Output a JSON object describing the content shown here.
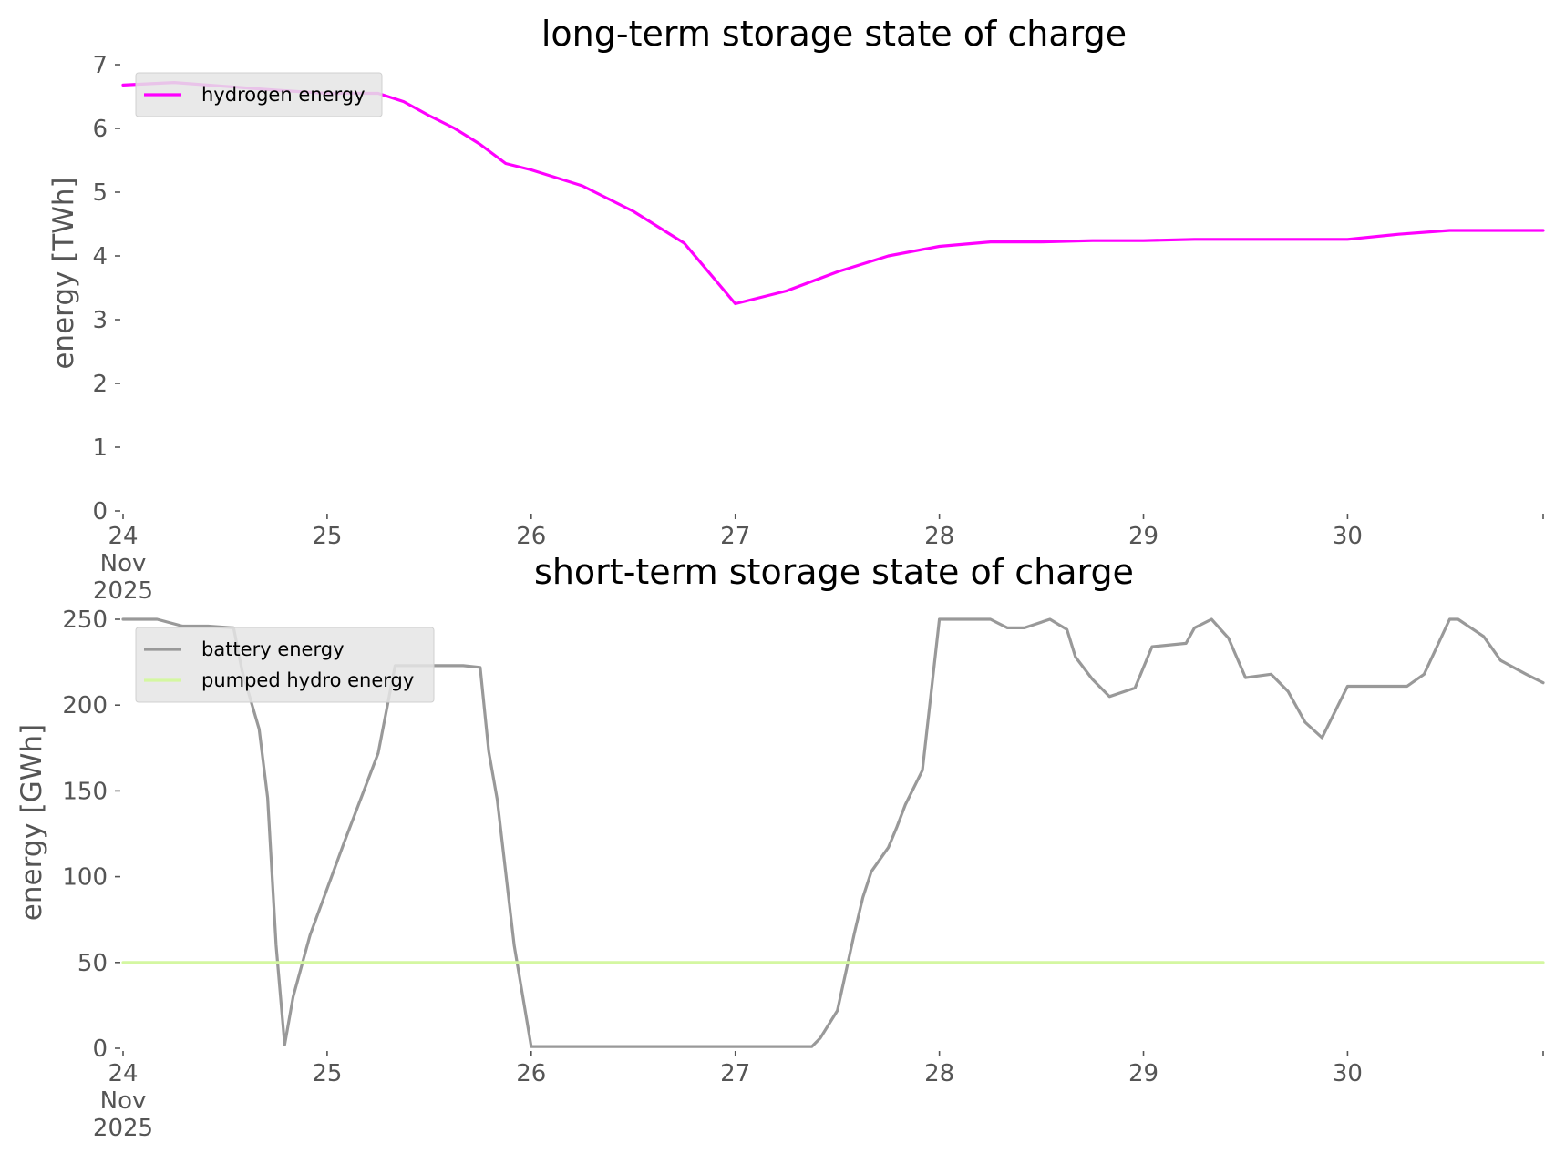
{
  "chart_data": [
    {
      "type": "line",
      "title": "long-term storage state of charge",
      "xlabel": "",
      "ylabel": "energy [TWh]",
      "xlim": [
        "2025-11-24",
        "2025-11-30 23:00"
      ],
      "ylim": [
        0,
        7
      ],
      "x_ticks": [
        "24\nNov\n2025",
        "25",
        "26",
        "27",
        "28",
        "29",
        "30"
      ],
      "y_ticks": [
        "0",
        "1",
        "2",
        "3",
        "4",
        "5",
        "6",
        "7"
      ],
      "grid": false,
      "legend": "top-left",
      "colors": {
        "hydrogen energy": "#ff00ff"
      },
      "series": [
        {
          "name": "hydrogen energy",
          "x": [
            "2025-11-24 00:00",
            "2025-11-24 06:00",
            "2025-11-24 12:00",
            "2025-11-24 18:00",
            "2025-11-25 00:00",
            "2025-11-25 06:00",
            "2025-11-25 09:00",
            "2025-11-25 12:00",
            "2025-11-25 15:00",
            "2025-11-25 18:00",
            "2025-11-25 21:00",
            "2025-11-26 00:00",
            "2025-11-26 06:00",
            "2025-11-26 12:00",
            "2025-11-26 18:00",
            "2025-11-27 00:00",
            "2025-11-27 06:00",
            "2025-11-27 12:00",
            "2025-11-27 18:00",
            "2025-11-28 00:00",
            "2025-11-28 06:00",
            "2025-11-28 12:00",
            "2025-11-28 18:00",
            "2025-11-29 00:00",
            "2025-11-29 06:00",
            "2025-11-29 12:00",
            "2025-11-29 18:00",
            "2025-11-30 00:00",
            "2025-11-30 06:00",
            "2025-11-30 12:00",
            "2025-11-30 18:00",
            "2025-11-30 23:00"
          ],
          "y": [
            6.68,
            6.72,
            6.66,
            6.6,
            6.55,
            6.55,
            6.42,
            6.2,
            6.0,
            5.75,
            5.45,
            5.35,
            5.1,
            4.7,
            4.2,
            3.25,
            3.45,
            3.75,
            4.0,
            4.15,
            4.22,
            4.22,
            4.24,
            4.24,
            4.26,
            4.26,
            4.26,
            4.26,
            4.34,
            4.4,
            4.4,
            4.4
          ]
        }
      ]
    },
    {
      "type": "line",
      "title": "short-term storage state of charge",
      "xlabel": "",
      "ylabel": "energy [GWh]",
      "xlim": [
        "2025-11-24",
        "2025-11-30 23:00"
      ],
      "ylim": [
        0,
        250
      ],
      "x_ticks": [
        "24\nNov\n2025",
        "25",
        "26",
        "27",
        "28",
        "29",
        "30"
      ],
      "y_ticks": [
        "0",
        "50",
        "100",
        "150",
        "200",
        "250"
      ],
      "grid": false,
      "legend": "top-left",
      "colors": {
        "battery energy": "#999999",
        "pumped hydro energy": "#d4f7a1"
      },
      "series": [
        {
          "name": "battery energy",
          "x": [
            "2025-11-24 00:00",
            "2025-11-24 04:00",
            "2025-11-24 07:00",
            "2025-11-24 10:00",
            "2025-11-24 13:00",
            "2025-11-24 14:00",
            "2025-11-24 16:00",
            "2025-11-24 17:00",
            "2025-11-24 18:00",
            "2025-11-24 19:00",
            "2025-11-24 20:00",
            "2025-11-24 22:00",
            "2025-11-25 02:00",
            "2025-11-25 06:00",
            "2025-11-25 08:00",
            "2025-11-25 16:00",
            "2025-11-25 18:00",
            "2025-11-25 19:00",
            "2025-11-25 20:00",
            "2025-11-25 22:00",
            "2025-11-26 00:00",
            "2025-11-27 06:00",
            "2025-11-27 09:00",
            "2025-11-27 10:00",
            "2025-11-27 12:00",
            "2025-11-27 14:00",
            "2025-11-27 15:00",
            "2025-11-27 16:00",
            "2025-11-27 18:00",
            "2025-11-27 19:00",
            "2025-11-27 20:00",
            "2025-11-27 22:00",
            "2025-11-28 00:00",
            "2025-11-28 06:00",
            "2025-11-28 08:00",
            "2025-11-28 10:00",
            "2025-11-28 13:00",
            "2025-11-28 15:00",
            "2025-11-28 16:00",
            "2025-11-28 18:00",
            "2025-11-28 20:00",
            "2025-11-28 23:00",
            "2025-11-29 01:00",
            "2025-11-29 05:00",
            "2025-11-29 06:00",
            "2025-11-29 08:00",
            "2025-11-29 10:00",
            "2025-11-29 12:00",
            "2025-11-29 15:00",
            "2025-11-29 17:00",
            "2025-11-29 19:00",
            "2025-11-29 21:00",
            "2025-11-30 00:00",
            "2025-11-30 07:00",
            "2025-11-30 09:00",
            "2025-11-30 12:00",
            "2025-11-30 13:00",
            "2025-11-30 16:00",
            "2025-11-30 18:00",
            "2025-11-30 21:00",
            "2025-11-30 23:00"
          ],
          "y": [
            250,
            250,
            246,
            246,
            245,
            220,
            186,
            146,
            60,
            2,
            30,
            66,
            120,
            172,
            223,
            223,
            222,
            173,
            145,
            60,
            1,
            1,
            1,
            6,
            22,
            67,
            88,
            103,
            117,
            129,
            142,
            162,
            250,
            250,
            245,
            245,
            250,
            244,
            228,
            215,
            205,
            210,
            234,
            236,
            245,
            250,
            239,
            216,
            218,
            208,
            190,
            181,
            211,
            211,
            218,
            250,
            250,
            240,
            226,
            218,
            213
          ]
        },
        {
          "name": "pumped hydro energy",
          "x": [
            "2025-11-24 00:00",
            "2025-11-30 23:00"
          ],
          "y": [
            50,
            50
          ]
        }
      ]
    }
  ]
}
